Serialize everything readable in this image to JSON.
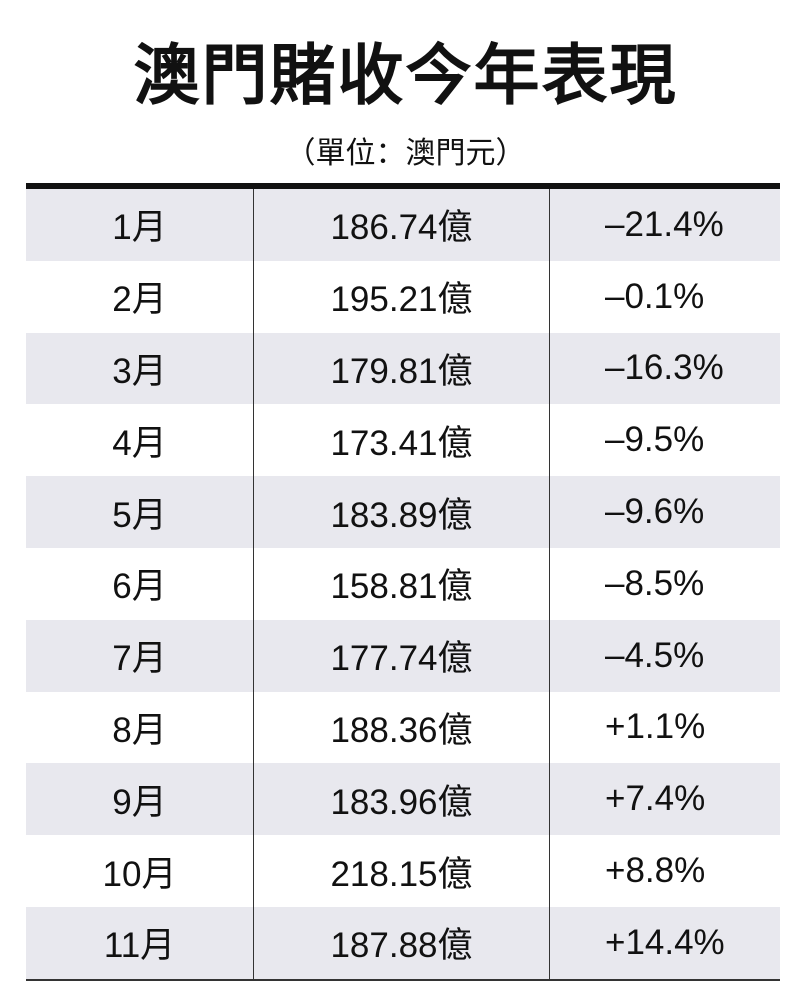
{
  "title": "澳門賭收今年表現",
  "subtitle": "（單位：澳門元）",
  "chart_data": {
    "type": "table",
    "title": "澳門賭收今年表現",
    "subtitle": "（單位：澳門元）",
    "rows": [
      {
        "month": "1月",
        "revenue": "186.74億",
        "change": "–21.4%"
      },
      {
        "month": "2月",
        "revenue": "195.21億",
        "change": "–0.1%"
      },
      {
        "month": "3月",
        "revenue": "179.81億",
        "change": "–16.3%"
      },
      {
        "month": "4月",
        "revenue": "173.41億",
        "change": "–9.5%"
      },
      {
        "month": "5月",
        "revenue": "183.89億",
        "change": "–9.6%"
      },
      {
        "month": "6月",
        "revenue": "158.81億",
        "change": "–8.5%"
      },
      {
        "month": "7月",
        "revenue": "177.74億",
        "change": "–4.5%"
      },
      {
        "month": "8月",
        "revenue": "188.36億",
        "change": "+1.1%"
      },
      {
        "month": "9月",
        "revenue": "183.96億",
        "change": "+7.4%"
      },
      {
        "month": "10月",
        "revenue": "218.15億",
        "change": "+8.8%"
      },
      {
        "month": "11月",
        "revenue": "187.88億",
        "change": "+14.4%"
      }
    ],
    "colors": {
      "shaded_row": "#e8e8ee",
      "rule": "#111111"
    }
  }
}
